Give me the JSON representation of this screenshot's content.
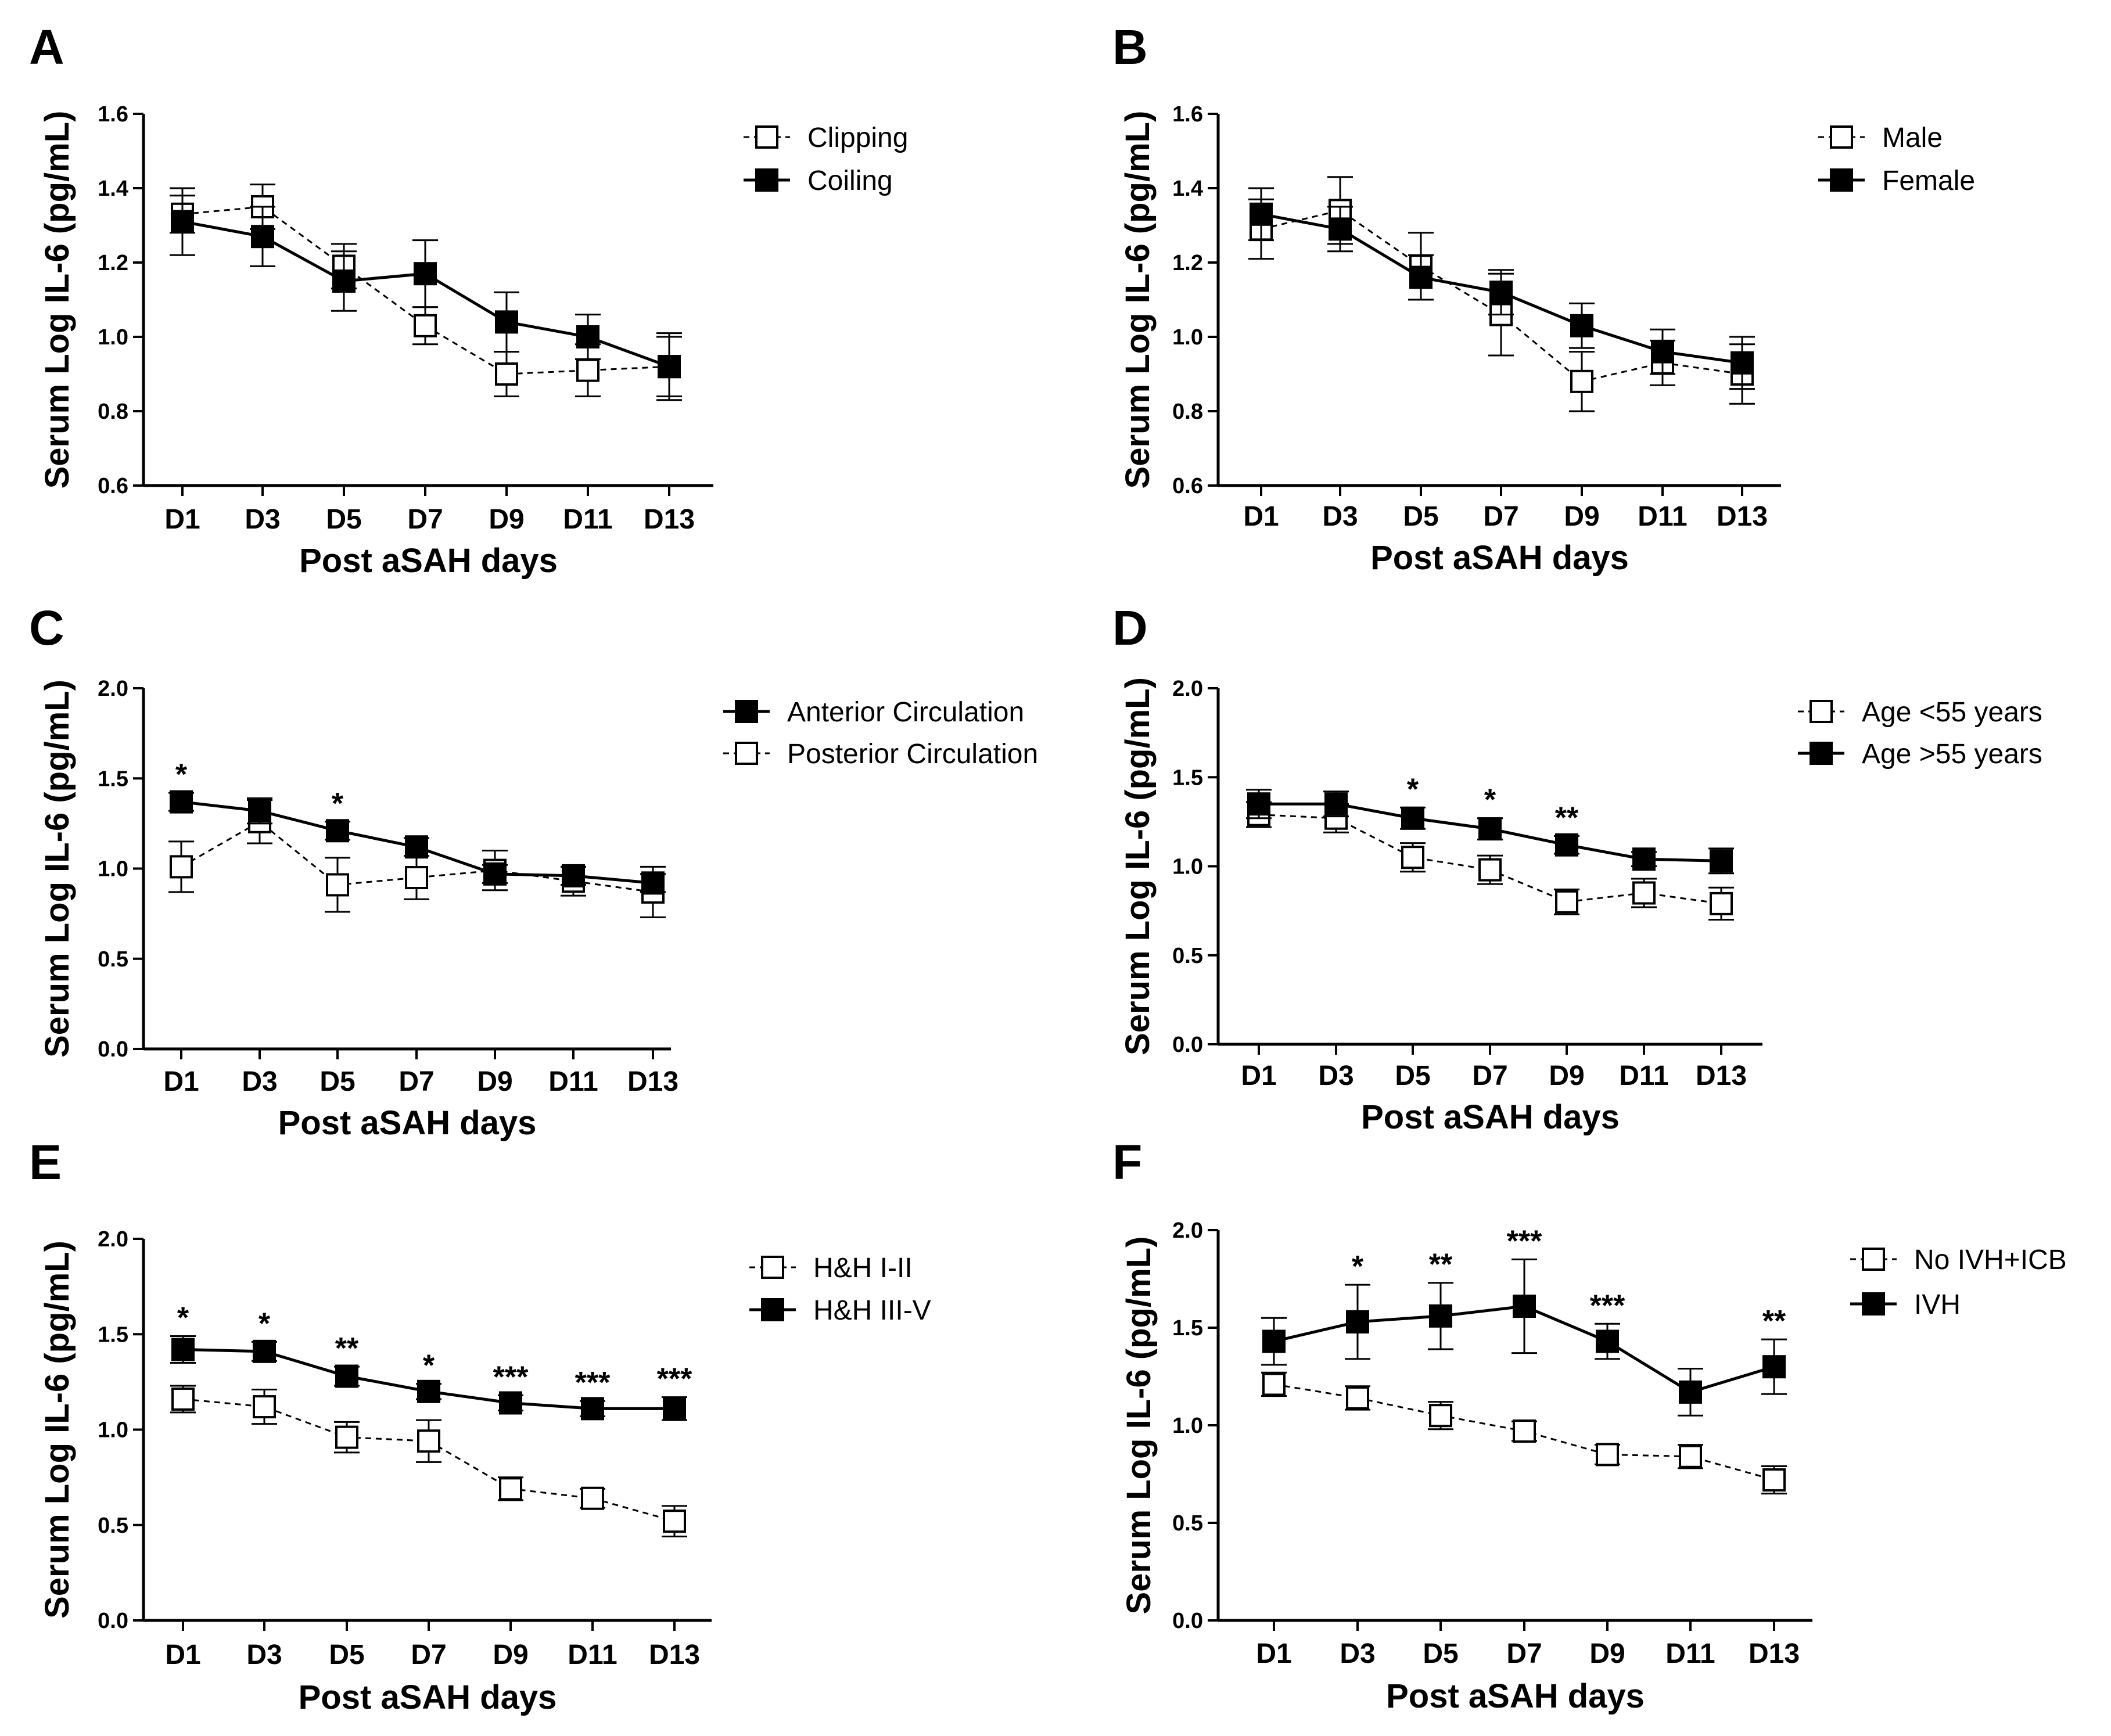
{
  "figure": {
    "title": ""
  },
  "chart_data": [
    {
      "panel": "A",
      "type": "line",
      "xlabel": "Post aSAH days",
      "ylabel": "Serum Log IL-6 (pg/mL)",
      "categories": [
        "D1",
        "D3",
        "D5",
        "D7",
        "D9",
        "D11",
        "D13"
      ],
      "ylim": [
        0.6,
        1.6
      ],
      "yticks": [
        "0.6",
        "0.8",
        "1.0",
        "1.2",
        "1.4",
        "1.6"
      ],
      "series": [
        {
          "name": "Clipping",
          "style": "open",
          "values": [
            1.33,
            1.35,
            1.19,
            1.03,
            0.9,
            0.91,
            0.92
          ],
          "errors": [
            0.05,
            0.06,
            0.06,
            0.05,
            0.06,
            0.07,
            0.08
          ]
        },
        {
          "name": "Coiling",
          "style": "filled",
          "values": [
            1.31,
            1.27,
            1.15,
            1.17,
            1.04,
            1.0,
            0.92
          ],
          "errors": [
            0.09,
            0.08,
            0.08,
            0.09,
            0.08,
            0.06,
            0.09
          ]
        }
      ],
      "significance": []
    },
    {
      "panel": "B",
      "type": "line",
      "xlabel": "Post aSAH days",
      "ylabel": "Serum Log IL-6 (pg/mL)",
      "categories": [
        "D1",
        "D3",
        "D5",
        "D7",
        "D9",
        "D11",
        "D13"
      ],
      "ylim": [
        0.6,
        1.6
      ],
      "yticks": [
        "0.6",
        "0.8",
        "1.0",
        "1.2",
        "1.4",
        "1.6"
      ],
      "series": [
        {
          "name": "Male",
          "style": "open",
          "values": [
            1.29,
            1.34,
            1.19,
            1.06,
            0.88,
            0.93,
            0.9
          ],
          "errors": [
            0.08,
            0.09,
            0.09,
            0.11,
            0.08,
            0.06,
            0.08
          ]
        },
        {
          "name": "Female",
          "style": "filled",
          "values": [
            1.33,
            1.29,
            1.16,
            1.12,
            1.03,
            0.96,
            0.93
          ],
          "errors": [
            0.07,
            0.06,
            0.06,
            0.06,
            0.06,
            0.06,
            0.07
          ]
        }
      ],
      "significance": []
    },
    {
      "panel": "C",
      "type": "line",
      "xlabel": "Post aSAH days",
      "ylabel": "Serum Log IL-6 (pg/mL)",
      "categories": [
        "D1",
        "D3",
        "D5",
        "D7",
        "D9",
        "D11",
        "D13"
      ],
      "ylim": [
        0.0,
        2.0
      ],
      "yticks": [
        "0.0",
        "0.5",
        "1.0",
        "1.5",
        "2.0"
      ],
      "series": [
        {
          "name": "Anterior Circulation",
          "style": "filled",
          "values": [
            1.37,
            1.32,
            1.21,
            1.12,
            0.97,
            0.96,
            0.92
          ],
          "errors": [
            0.05,
            0.07,
            0.05,
            0.05,
            0.05,
            0.05,
            0.05
          ]
        },
        {
          "name": "Posterior Circulation",
          "style": "open",
          "values": [
            1.01,
            1.26,
            0.91,
            0.95,
            0.99,
            0.93,
            0.87
          ],
          "errors": [
            0.14,
            0.12,
            0.15,
            0.12,
            0.11,
            0.08,
            0.14
          ]
        }
      ],
      "significance": [
        {
          "x": "D1",
          "mark": "*"
        },
        {
          "x": "D5",
          "mark": "*"
        }
      ]
    },
    {
      "panel": "D",
      "type": "line",
      "xlabel": "Post aSAH days",
      "ylabel": "Serum Log IL-6 (pg/mL)",
      "categories": [
        "D1",
        "D3",
        "D5",
        "D7",
        "D9",
        "D11",
        "D13"
      ],
      "ylim": [
        0.0,
        2.0
      ],
      "yticks": [
        "0.0",
        "0.5",
        "1.0",
        "1.5",
        "2.0"
      ],
      "series": [
        {
          "name": "Age <55 years",
          "style": "open",
          "values": [
            1.29,
            1.27,
            1.05,
            0.98,
            0.8,
            0.85,
            0.79
          ],
          "errors": [
            0.07,
            0.08,
            0.08,
            0.08,
            0.07,
            0.08,
            0.09
          ]
        },
        {
          "name": "Age >55 years",
          "style": "filled",
          "values": [
            1.35,
            1.35,
            1.27,
            1.21,
            1.12,
            1.04,
            1.03
          ],
          "errors": [
            0.08,
            0.07,
            0.06,
            0.06,
            0.05,
            0.04,
            0.07
          ]
        }
      ],
      "significance": [
        {
          "x": "D5",
          "mark": "*"
        },
        {
          "x": "D7",
          "mark": "*"
        },
        {
          "x": "D9",
          "mark": "**"
        }
      ]
    },
    {
      "panel": "E",
      "type": "line",
      "xlabel": "Post aSAH days",
      "ylabel": "Serum Log IL-6 (pg/mL)",
      "categories": [
        "D1",
        "D3",
        "D5",
        "D7",
        "D9",
        "D11",
        "D13"
      ],
      "ylim": [
        0.0,
        2.0
      ],
      "yticks": [
        "0.0",
        "0.5",
        "1.0",
        "1.5",
        "2.0"
      ],
      "series": [
        {
          "name": "H&H I-II",
          "style": "open",
          "values": [
            1.16,
            1.12,
            0.96,
            0.94,
            0.69,
            0.64,
            0.52
          ],
          "errors": [
            0.07,
            0.09,
            0.08,
            0.11,
            0.06,
            0.05,
            0.08
          ]
        },
        {
          "name": "H&H III-V",
          "style": "filled",
          "values": [
            1.42,
            1.41,
            1.28,
            1.2,
            1.14,
            1.11,
            1.11
          ],
          "errors": [
            0.07,
            0.05,
            0.05,
            0.04,
            0.04,
            0.04,
            0.06
          ]
        }
      ],
      "significance": [
        {
          "x": "D1",
          "mark": "*"
        },
        {
          "x": "D3",
          "mark": "*"
        },
        {
          "x": "D5",
          "mark": "**"
        },
        {
          "x": "D7",
          "mark": "*"
        },
        {
          "x": "D9",
          "mark": "***"
        },
        {
          "x": "D11",
          "mark": "***"
        },
        {
          "x": "D13",
          "mark": "***"
        }
      ]
    },
    {
      "panel": "F",
      "type": "line",
      "xlabel": "Post aSAH days",
      "ylabel": "Serum Log IL-6 (pg/mL)",
      "categories": [
        "D1",
        "D3",
        "D5",
        "D7",
        "D9",
        "D11",
        "D13"
      ],
      "ylim": [
        0.0,
        2.0
      ],
      "yticks": [
        "0.0",
        "0.5",
        "1.0",
        "1.5",
        "2.0"
      ],
      "series": [
        {
          "name": "No IVH+ICB",
          "style": "open",
          "values": [
            1.21,
            1.14,
            1.05,
            0.97,
            0.85,
            0.84,
            0.72
          ],
          "errors": [
            0.06,
            0.06,
            0.07,
            0.05,
            0.05,
            0.06,
            0.07
          ]
        },
        {
          "name": "IVH",
          "style": "filled",
          "values": [
            1.43,
            1.53,
            1.56,
            1.61,
            1.43,
            1.17,
            1.3
          ],
          "errors": [
            0.12,
            0.19,
            0.17,
            0.24,
            0.09,
            0.12,
            0.14
          ]
        }
      ],
      "significance": [
        {
          "x": "D3",
          "mark": "*"
        },
        {
          "x": "D5",
          "mark": "**"
        },
        {
          "x": "D7",
          "mark": "***"
        },
        {
          "x": "D9",
          "mark": "***"
        },
        {
          "x": "D13",
          "mark": "**"
        }
      ]
    }
  ]
}
